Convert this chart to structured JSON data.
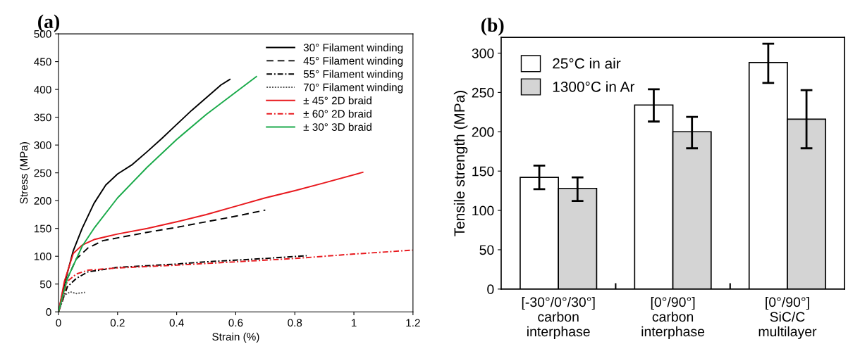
{
  "chart_data": [
    {
      "type": "line",
      "title": "(a)",
      "xlabel": "Strain (%)",
      "ylabel": "Stress (MPa)",
      "xlim": [
        0,
        1.2
      ],
      "ylim": [
        0,
        500
      ],
      "xticks": [
        0,
        0.2,
        0.4,
        0.6,
        0.8,
        1,
        1.2
      ],
      "yticks": [
        0,
        50,
        100,
        150,
        200,
        250,
        300,
        350,
        400,
        450,
        500
      ],
      "legend": "top right",
      "grid": false,
      "series": [
        {
          "name": "30° Filament winding",
          "color": "#000000",
          "line_style": "solid",
          "x": [
            0,
            0.02,
            0.05,
            0.08,
            0.12,
            0.16,
            0.2,
            0.25,
            0.3,
            0.35,
            0.4,
            0.45,
            0.5,
            0.55,
            0.58
          ],
          "values": [
            0,
            50,
            110,
            150,
            195,
            228,
            248,
            265,
            288,
            312,
            337,
            362,
            385,
            408,
            418
          ]
        },
        {
          "name": "45° Filament winding",
          "color": "#000000",
          "line_style": "dashed",
          "x": [
            0,
            0.03,
            0.06,
            0.1,
            0.15,
            0.2,
            0.3,
            0.4,
            0.5,
            0.6,
            0.7
          ],
          "values": [
            0,
            60,
            95,
            115,
            128,
            133,
            143,
            152,
            162,
            172,
            183
          ]
        },
        {
          "name": "55° Filament winding",
          "color": "#000000",
          "line_style": "dashdot",
          "x": [
            0,
            0.03,
            0.06,
            0.1,
            0.2,
            0.3,
            0.4,
            0.5,
            0.6,
            0.7,
            0.84
          ],
          "values": [
            0,
            45,
            60,
            72,
            80,
            83,
            86,
            90,
            93,
            96,
            101
          ]
        },
        {
          "name": "70° Filament winding",
          "color": "#555555",
          "line_style": "dotted",
          "x": [
            0,
            0.02,
            0.04,
            0.06,
            0.09
          ],
          "values": [
            0,
            30,
            36,
            33,
            35
          ]
        },
        {
          "name": "± 45° 2D braid",
          "color": "#e8191e",
          "line_style": "solid",
          "x": [
            0,
            0.02,
            0.05,
            0.08,
            0.12,
            0.16,
            0.2,
            0.3,
            0.4,
            0.5,
            0.6,
            0.7,
            0.8,
            0.9,
            1.03
          ],
          "values": [
            0,
            55,
            105,
            120,
            130,
            135,
            140,
            150,
            162,
            175,
            190,
            205,
            218,
            232,
            251
          ]
        },
        {
          "name": "± 60° 2D braid",
          "color": "#e8191e",
          "line_style": "dashdot",
          "x": [
            0,
            0.03,
            0.06,
            0.1,
            0.2,
            0.4,
            0.6,
            0.8,
            1.0,
            1.2
          ],
          "values": [
            0,
            55,
            68,
            75,
            79,
            84,
            90,
            96,
            104,
            111
          ]
        },
        {
          "name": "± 30° 3D braid",
          "color": "#1aaa4a",
          "line_style": "solid",
          "x": [
            0,
            0.03,
            0.08,
            0.12,
            0.2,
            0.3,
            0.4,
            0.5,
            0.6,
            0.67
          ],
          "values": [
            0,
            60,
            118,
            150,
            205,
            260,
            310,
            355,
            395,
            423
          ]
        }
      ]
    },
    {
      "type": "bar",
      "title": "(b)",
      "ylabel": "Tensile strength (MPa)",
      "categories": [
        "[-30°/0°/30°]\ncarbon\ninterphase",
        "[0°/90°]\ncarbon\ninterphase",
        "[0°/90°]\nSiC/C\nmultilayer"
      ],
      "ylim": [
        0,
        320
      ],
      "yticks": [
        0,
        50,
        100,
        150,
        200,
        250,
        300
      ],
      "legend": "top left",
      "grid": false,
      "series": [
        {
          "name": "25°C in air",
          "color": "#ffffff",
          "values": [
            142,
            234,
            288
          ],
          "errors": [
            [
              127,
              157
            ],
            [
              213,
              254
            ],
            [
              262,
              312
            ]
          ]
        },
        {
          "name": "1300°C in Ar",
          "color": "#d4d4d4",
          "values": [
            128,
            200,
            216
          ],
          "errors": [
            [
              112,
              142
            ],
            [
              179,
              219
            ],
            [
              179,
              253
            ]
          ]
        }
      ]
    }
  ]
}
